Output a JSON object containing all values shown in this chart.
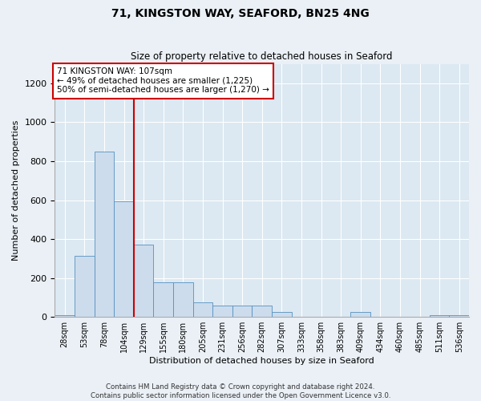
{
  "title": "71, KINGSTON WAY, SEAFORD, BN25 4NG",
  "subtitle": "Size of property relative to detached houses in Seaford",
  "xlabel": "Distribution of detached houses by size in Seaford",
  "ylabel": "Number of detached properties",
  "categories": [
    "28sqm",
    "53sqm",
    "78sqm",
    "104sqm",
    "129sqm",
    "155sqm",
    "180sqm",
    "205sqm",
    "231sqm",
    "256sqm",
    "282sqm",
    "307sqm",
    "333sqm",
    "358sqm",
    "383sqm",
    "409sqm",
    "434sqm",
    "460sqm",
    "485sqm",
    "511sqm",
    "536sqm"
  ],
  "values": [
    10,
    315,
    850,
    595,
    370,
    180,
    180,
    75,
    60,
    60,
    60,
    25,
    0,
    0,
    0,
    25,
    0,
    0,
    0,
    10,
    10
  ],
  "bar_color": "#ccdcec",
  "bar_edge_color": "#5590c0",
  "vline_color": "#cc0000",
  "vline_pos": 3.5,
  "annotation_text": "71 KINGSTON WAY: 107sqm\n← 49% of detached houses are smaller (1,225)\n50% of semi-detached houses are larger (1,270) →",
  "annotation_box_color": "#ffffff",
  "annotation_box_edge_color": "#cc0000",
  "ylim": [
    0,
    1300
  ],
  "yticks": [
    0,
    200,
    400,
    600,
    800,
    1000,
    1200
  ],
  "footer": "Contains HM Land Registry data © Crown copyright and database right 2024.\nContains public sector information licensed under the Open Government Licence v3.0.",
  "fig_bg_color": "#eaf0f6",
  "plot_bg_color": "#dce8f2"
}
